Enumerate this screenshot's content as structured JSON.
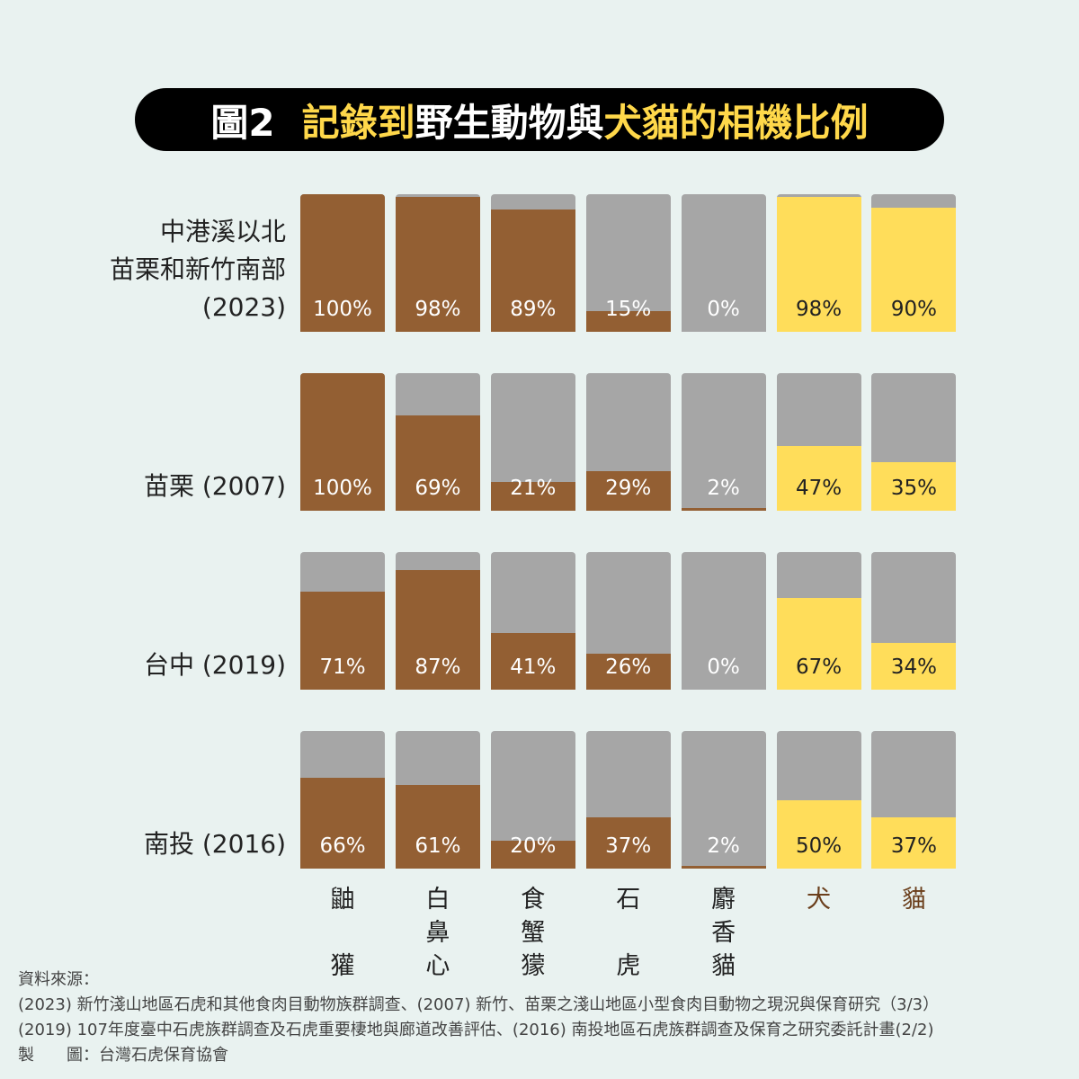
{
  "title": {
    "fig": "圖2",
    "p1": "記錄到",
    "p2": "野生動物與",
    "p3": "犬貓的相機比例"
  },
  "colors": {
    "wild": "#935f33",
    "dogcat": "#ffdd5a",
    "rest": "#a6a6a6"
  },
  "chart_data": {
    "type": "bar",
    "title": "記錄到野生動物與犬貓的相機比例",
    "categories": [
      "鼬獾",
      "白鼻心",
      "食蟹獴",
      "石虎",
      "麝香貓",
      "犬",
      "貓"
    ],
    "category_labels": [
      [
        "鼬",
        "",
        "獾"
      ],
      [
        "白",
        "鼻",
        "心"
      ],
      [
        "食",
        "蟹",
        "獴"
      ],
      [
        "石",
        "",
        "虎"
      ],
      [
        "麝",
        "香",
        "貓"
      ],
      [
        "犬"
      ],
      [
        "貓"
      ]
    ],
    "ylim": [
      0,
      100
    ],
    "series": [
      {
        "name": "中港溪以北 苗栗和新竹南部 (2023)",
        "label_lines": [
          "中港溪以北",
          "苗栗和新竹南部",
          "(2023)"
        ],
        "values": [
          100,
          98,
          89,
          15,
          0,
          98,
          90
        ]
      },
      {
        "name": "苗栗 (2007)",
        "label_lines": [
          "苗栗 (2007)"
        ],
        "values": [
          100,
          69,
          21,
          29,
          2,
          47,
          35
        ]
      },
      {
        "name": "台中 (2019)",
        "label_lines": [
          "台中 (2019)"
        ],
        "values": [
          71,
          87,
          41,
          26,
          0,
          67,
          34
        ]
      },
      {
        "name": "南投 (2016)",
        "label_lines": [
          "南投 (2016)"
        ],
        "values": [
          66,
          61,
          20,
          37,
          2,
          50,
          37
        ]
      }
    ]
  },
  "source": {
    "heading": "資料來源：",
    "lines": [
      "(2023) 新竹淺山地區石虎和其他食肉目動物族群調查、(2007) 新竹、苗栗之淺山地區小型食肉目動物之現況與保育研究（3/3）",
      "(2019) 107年度臺中石虎族群調查及石虎重要棲地與廊道改善評估、(2016) 南投地區石虎族群調查及保育之研究委託計畫(2/2)"
    ],
    "credit": "製　　圖：台灣石虎保育協會"
  }
}
